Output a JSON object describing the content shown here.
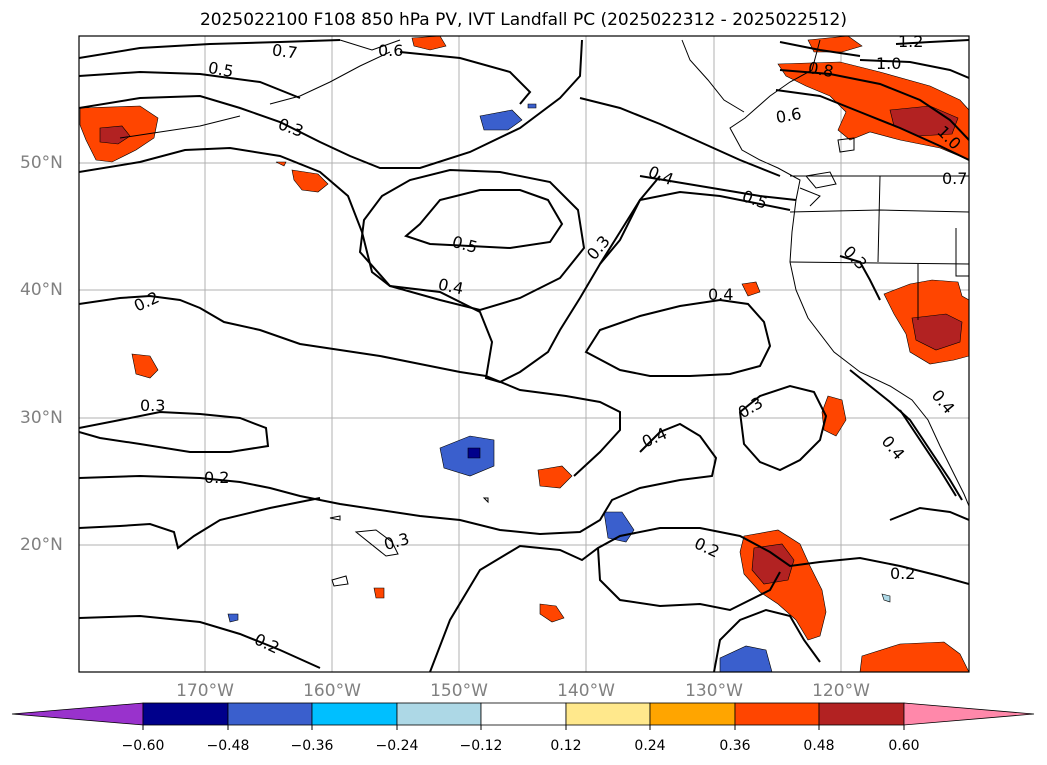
{
  "title": "2025022100 F108 850 hPa PV, IVT Landfall PC (2025022312 - 2025022512)",
  "lat_labels": [
    "50°N",
    "40°N",
    "30°N",
    "20°N"
  ],
  "lon_labels": [
    "170°W",
    "160°W",
    "150°W",
    "140°W",
    "130°W",
    "120°W"
  ],
  "contour_labels": [
    "0.7",
    "0.6",
    "0.5",
    "0.3",
    "1.2",
    "1.0",
    "0.8",
    "0.6",
    "0.4",
    "0.5",
    "0.5",
    "0.4",
    "0.3",
    "0.2",
    "0.4",
    "0.3",
    "0.3",
    "0.4",
    "0.3",
    "0.2",
    "0.3",
    "0.2",
    "0.2",
    "0.4",
    "0.4",
    "0.2",
    "1.0",
    "0.7"
  ],
  "colorbar": {
    "ticks": [
      "−0.60",
      "−0.48",
      "−0.36",
      "−0.24",
      "−0.12",
      "0.12",
      "0.24",
      "0.36",
      "0.48",
      "0.60"
    ],
    "colors": [
      "#9932CC",
      "#00008B",
      "#3A5FCD",
      "#00BFFF",
      "#ADD8E6",
      "#FFFFFF",
      "#FFE88C",
      "#FFA500",
      "#FF4500",
      "#B22222",
      "#FF88AA"
    ]
  },
  "colors": {
    "neg_dark": "#00008B",
    "neg_mid": "#3A5FCD",
    "neg_light": "#00BFFF",
    "neg_pale": "#ADD8E6",
    "pos_pale": "#FFE88C",
    "pos_light": "#FFA500",
    "pos_mid": "#FF4500",
    "pos_dark": "#B22222"
  }
}
